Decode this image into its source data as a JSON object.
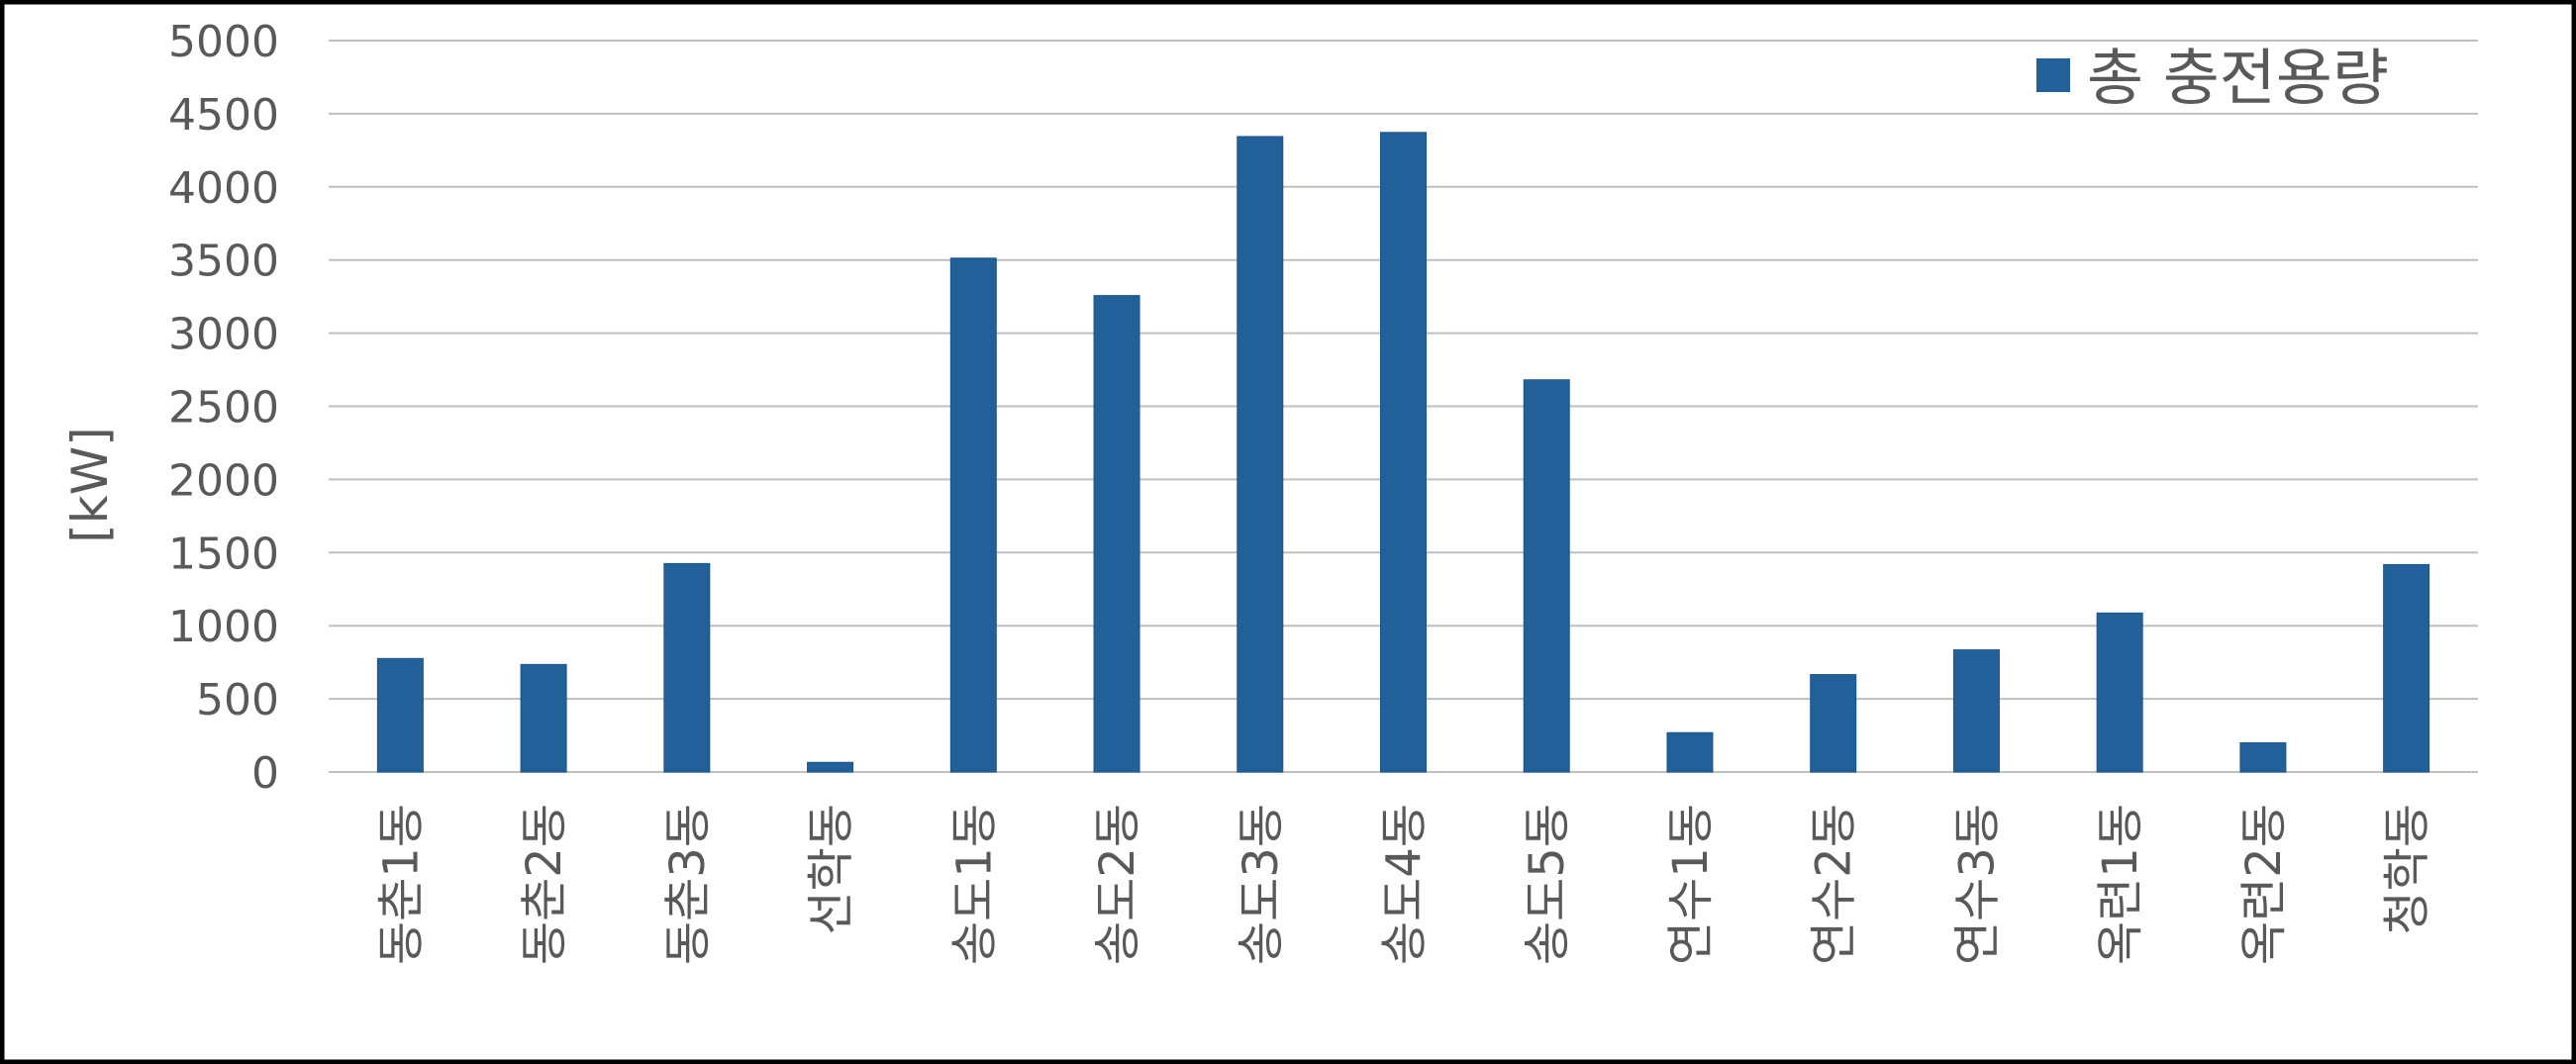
{
  "chart_data": {
    "type": "bar",
    "title": "",
    "xlabel": "",
    "ylabel": "[kW]",
    "ylim": [
      0,
      5000
    ],
    "yticks": [
      "0",
      "500",
      "1000",
      "1500",
      "2000",
      "2500",
      "3000",
      "3500",
      "4000",
      "4500",
      "5000"
    ],
    "grid": true,
    "legend_position": "top-right",
    "categories": [
      "동춘1동",
      "동춘2동",
      "동춘3동",
      "선학동",
      "송도1동",
      "송도2동",
      "송도3동",
      "송도4동",
      "송도5동",
      "연수1동",
      "연수2동",
      "연수3동",
      "옥련1동",
      "옥련2동",
      "청학동"
    ],
    "series": [
      {
        "name": "총 충전용량",
        "color": "#22609A",
        "values": [
          776,
          735,
          1425,
          66,
          3513,
          3257,
          4344,
          4372,
          2681,
          269,
          666,
          835,
          1087,
          200,
          1418
        ]
      }
    ]
  }
}
